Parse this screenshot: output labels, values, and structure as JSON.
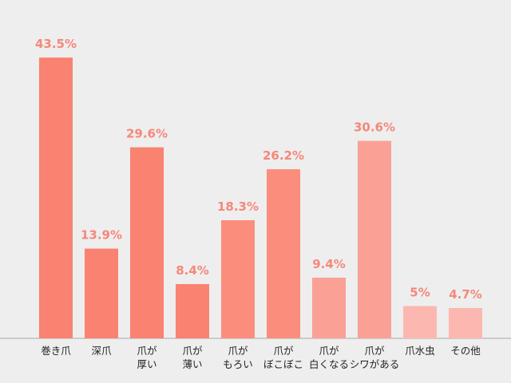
{
  "chart_data": {
    "type": "bar",
    "categories": [
      [
        "巻き爪"
      ],
      [
        "深爪"
      ],
      [
        "爪が",
        "厚い"
      ],
      [
        "爪が",
        "薄い"
      ],
      [
        "爪が",
        "もろい"
      ],
      [
        "爪が",
        "ぼこぼこ"
      ],
      [
        "爪が",
        "白くなる"
      ],
      [
        "爪が",
        "シワがある"
      ],
      [
        "爪水虫"
      ],
      [
        "その他"
      ]
    ],
    "values": [
      43.5,
      13.9,
      29.6,
      8.4,
      18.3,
      26.2,
      9.4,
      30.6,
      5,
      4.7
    ],
    "value_labels": [
      "43.5%",
      "13.9%",
      "29.6%",
      "8.4%",
      "18.3%",
      "26.2%",
      "9.4%",
      "30.6%",
      "5%",
      "4.7%"
    ],
    "bar_colors": [
      "#fa8270",
      "#fa8270",
      "#fa8270",
      "#fa8270",
      "#fb8d7c",
      "#fb8d7c",
      "#fba095",
      "#fba095",
      "#fcb8b0",
      "#fcb8b0"
    ],
    "label_color": "#f5887a",
    "title": "",
    "xlabel": "",
    "ylabel": "",
    "ylim": [
      0,
      45.5
    ],
    "grid": false,
    "legend": "none"
  }
}
